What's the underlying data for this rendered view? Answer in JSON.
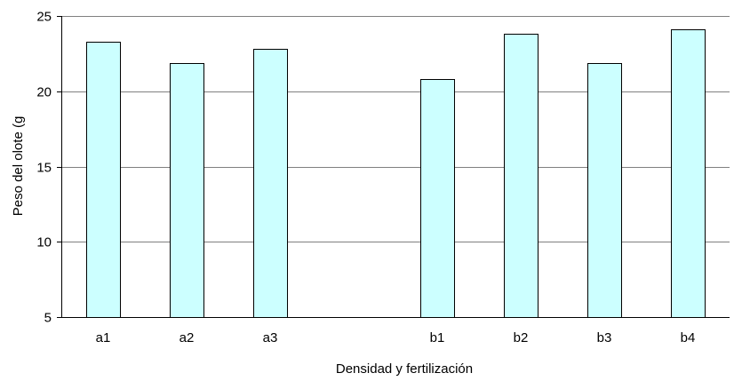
{
  "chart_data": {
    "type": "bar",
    "title": "",
    "xlabel": "Densidad  y fertilización",
    "ylabel": "Peso del olote (g",
    "categories": [
      "a1",
      "a2",
      "a3",
      "",
      "b1",
      "b2",
      "b3",
      "b4"
    ],
    "values": [
      23.3,
      21.9,
      22.8,
      null,
      20.8,
      23.8,
      21.9,
      24.1
    ],
    "ylim": [
      5,
      25
    ],
    "yticks": [
      5,
      10,
      15,
      20,
      25
    ],
    "grid": true,
    "legend": "none",
    "colors": {
      "bar_fill": "#ccffff",
      "bar_stroke": "#000000",
      "grid": "#808080",
      "axis": "#000000"
    }
  }
}
